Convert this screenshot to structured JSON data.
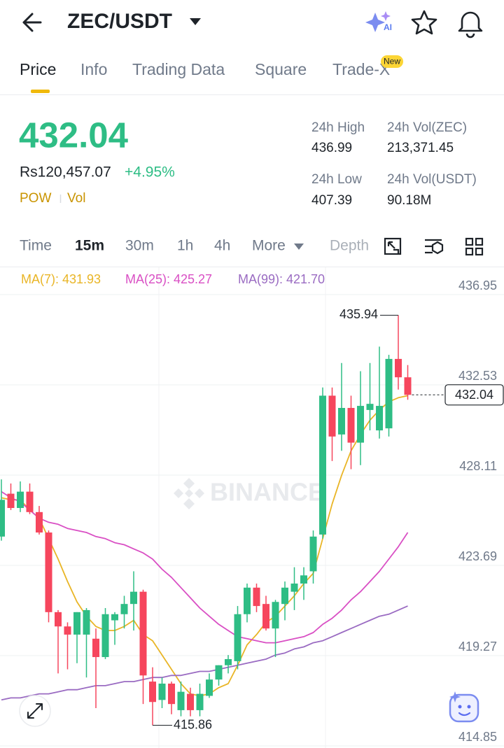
{
  "header": {
    "title": "ZEC/USDT"
  },
  "tabs": {
    "items": [
      "Price",
      "Info",
      "Trading Data",
      "Square",
      "Trade-X"
    ],
    "badge": "New"
  },
  "ticker": {
    "price": "432.04",
    "fiat_price": "Rs120,457.07",
    "change": "+4.95%",
    "tags": [
      "POW",
      "Vol"
    ]
  },
  "stats": [
    {
      "label": "24h High",
      "value": "436.99"
    },
    {
      "label": "24h Vol(ZEC)",
      "value": "213,371.45"
    },
    {
      "label": "24h Low",
      "value": "407.39"
    },
    {
      "label": "24h Vol(USDT)",
      "value": "90.18M"
    }
  ],
  "intervals": [
    "Time",
    "15m",
    "30m",
    "1h",
    "4h",
    "More",
    "Depth"
  ],
  "chart_data": {
    "type": "candlestick",
    "watermark": "BINANCE",
    "up_color": "#2ebd85",
    "down_color": "#f6465d",
    "open": [
      425.1,
      427.2,
      426.5,
      427.3,
      426.3,
      425.3,
      421.4,
      420.7,
      420.3,
      420.3,
      420.1,
      419.2,
      421.0,
      421.3,
      421.8,
      422.4,
      418.0,
      417.1,
      417.9,
      416.6,
      417.4,
      416.6,
      417.3,
      418.1,
      418.8,
      419.0,
      421.3,
      422.6,
      421.8,
      420.6,
      421.8,
      422.4,
      422.8,
      423.4,
      425.2,
      432.0,
      430.1,
      431.4,
      429.7,
      431.3,
      430.3,
      430.4,
      433.8,
      432.9
    ],
    "high": [
      427.9,
      427.7,
      427.8,
      427.7,
      426.6,
      425.4,
      421.5,
      420.9,
      421.4,
      421.6,
      420.6,
      421.6,
      421.4,
      422.2,
      423.4,
      422.5,
      418.7,
      418.2,
      418.0,
      418.0,
      417.7,
      417.9,
      418.4,
      418.8,
      419.3,
      421.7,
      422.8,
      422.8,
      422.2,
      422.0,
      422.9,
      423.6,
      423.6,
      425.4,
      432.4,
      432.4,
      433.6,
      432.0,
      433.2,
      433.6,
      434.4,
      434.0,
      435.94,
      433.5
    ],
    "low": [
      424.9,
      426.4,
      426.3,
      426.2,
      425.2,
      420.9,
      418.4,
      418.6,
      418.9,
      418.2,
      416.7,
      419.1,
      419.8,
      420.6,
      420.5,
      416.9,
      415.86,
      416.7,
      416.4,
      416.3,
      416.3,
      416.3,
      417.2,
      417.8,
      418.4,
      418.6,
      420.9,
      421.4,
      420.5,
      419.2,
      421.0,
      421.5,
      422.0,
      422.8,
      425.0,
      428.8,
      429.3,
      428.4,
      428.6,
      430.3,
      429.9,
      430.0,
      432.3,
      431.8
    ],
    "close": [
      426.9,
      426.5,
      427.3,
      426.3,
      425.3,
      421.4,
      420.7,
      420.3,
      421.4,
      421.5,
      419.2,
      421.3,
      421.3,
      421.8,
      422.4,
      418.3,
      417.0,
      417.9,
      416.9,
      417.5,
      416.6,
      417.4,
      418.1,
      418.8,
      419.1,
      421.3,
      422.6,
      421.7,
      420.6,
      421.9,
      422.6,
      422.8,
      423.2,
      425.1,
      432.0,
      430.0,
      431.4,
      429.7,
      431.5,
      431.6,
      431.5,
      433.8,
      432.9,
      432.04
    ],
    "lines": [
      {
        "name": "MA(7): 431.93",
        "color": "#e9b526",
        "values": [
          427.0,
          426.9,
          426.9,
          426.4,
          426.0,
          425.0,
          424.0,
          422.9,
          421.9,
          421.2,
          420.7,
          420.5,
          420.5,
          420.7,
          421.0,
          420.3,
          420.0,
          419.3,
          418.6,
          417.9,
          417.4,
          417.3,
          417.4,
          417.7,
          417.9,
          418.8,
          419.8,
          420.3,
          420.9,
          421.2,
          421.7,
          422.2,
          422.8,
          423.3,
          425.0,
          426.7,
          428.1,
          429.3,
          430.1,
          430.8,
          431.3,
          431.7,
          431.9,
          432.0
        ]
      },
      {
        "name": "MA(25): 425.27",
        "color": "#d94fc4",
        "values": [
          427.3,
          427.0,
          426.8,
          426.4,
          426.0,
          425.8,
          425.7,
          425.5,
          425.4,
          425.3,
          425.1,
          425.0,
          424.8,
          424.7,
          424.5,
          424.3,
          424.0,
          423.5,
          423.1,
          422.6,
          422.1,
          421.6,
          421.2,
          420.8,
          420.5,
          420.2,
          420.1,
          420.0,
          419.9,
          419.9,
          420.0,
          420.1,
          420.2,
          420.4,
          420.8,
          421.1,
          421.5,
          422.0,
          422.4,
          422.9,
          423.4,
          424.0,
          424.6,
          425.3
        ]
      },
      {
        "name": "MA(99): 421.70",
        "color": "#9a6bc2",
        "values": [
          417.1,
          417.2,
          417.2,
          417.3,
          417.4,
          417.4,
          417.5,
          417.6,
          417.6,
          417.7,
          417.8,
          417.8,
          417.9,
          418.0,
          418.0,
          418.1,
          418.2,
          418.2,
          418.3,
          418.3,
          418.4,
          418.5,
          418.5,
          418.6,
          418.7,
          418.8,
          418.9,
          419.0,
          419.1,
          419.3,
          419.4,
          419.6,
          419.7,
          419.9,
          420.0,
          420.2,
          420.4,
          420.6,
          420.8,
          421.0,
          421.2,
          421.3,
          421.5,
          421.7
        ]
      }
    ],
    "ylim": [
      414.85,
      436.95
    ],
    "yticks": [
      436.95,
      432.53,
      428.11,
      423.69,
      419.27,
      414.85
    ],
    "grid": true
  }
}
